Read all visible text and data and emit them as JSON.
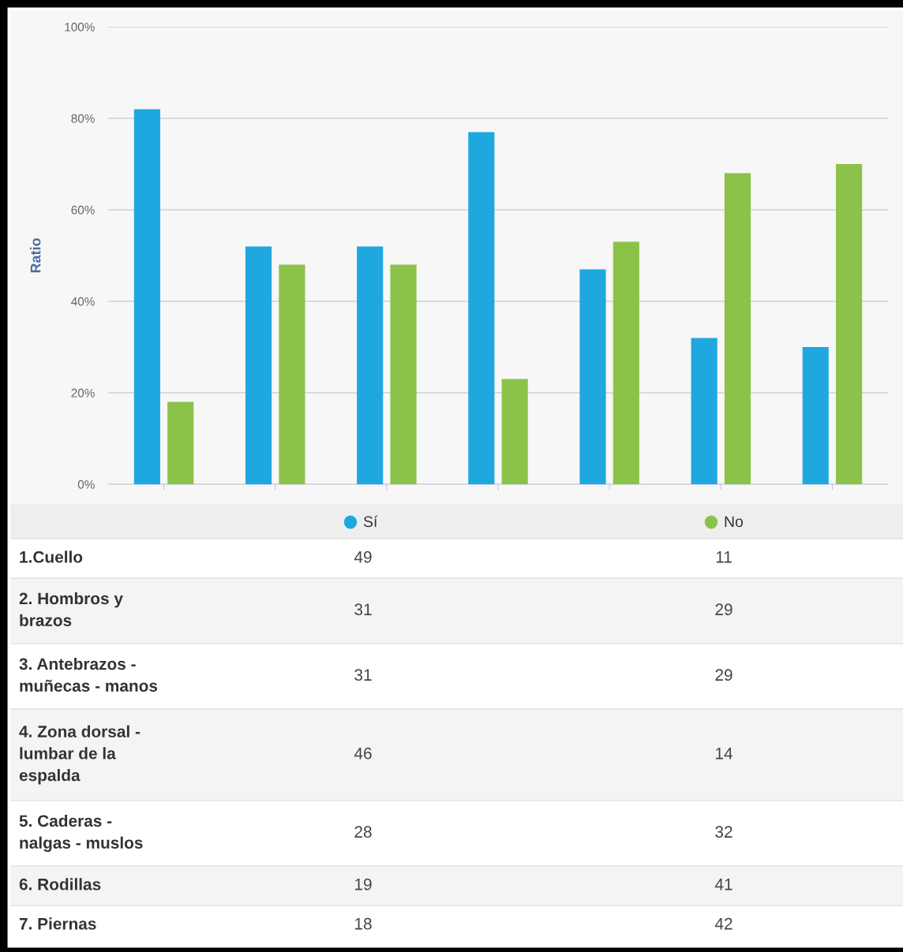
{
  "chart_data": {
    "type": "bar",
    "ylabel": "Ratio",
    "categories": [
      null,
      null,
      null,
      null,
      null,
      null,
      null
    ],
    "series": [
      {
        "name": "Sí",
        "color": "#1fa8e0",
        "values": [
          82,
          52,
          52,
          77,
          47,
          32,
          30
        ]
      },
      {
        "name": "No",
        "color": "#8bc34a",
        "values": [
          18,
          48,
          48,
          23,
          53,
          68,
          70
        ]
      }
    ],
    "ylim": [
      0,
      100
    ],
    "yticks": [
      {
        "value": 0,
        "label": "0%"
      },
      {
        "value": 20,
        "label": "20%"
      },
      {
        "value": 40,
        "label": "40%"
      },
      {
        "value": 60,
        "label": "60%"
      },
      {
        "value": 80,
        "label": "80%"
      },
      {
        "value": 100,
        "label": "100%"
      }
    ],
    "annotations": [
      "1.Cuello",
      "49",
      "11",
      "2. Hombros y\nbrazos",
      "31",
      "29",
      "3. Antebrazos -\nmuñecas - manos",
      "31",
      "29",
      "4. Zona dorsal -\nlumbar de la\nespalda",
      "46",
      "14",
      "5. Caderas -\nnalgas - muslos",
      "28",
      "32",
      "6. Rodillas",
      "19",
      "41",
      "7. Piernas",
      "18",
      "42"
    ],
    "grid": "y",
    "legend": "bottom",
    "tick_labels": "y"
  }
}
